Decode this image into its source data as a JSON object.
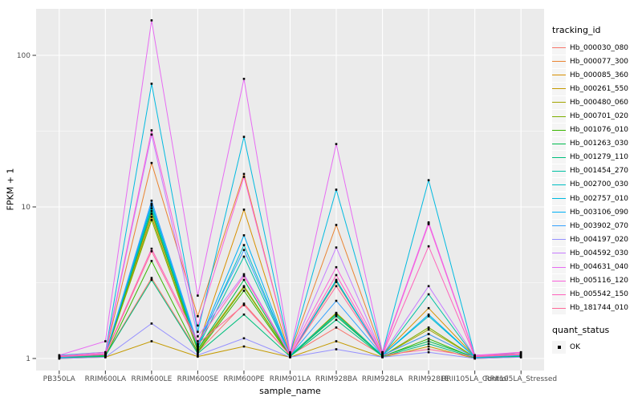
{
  "chart_data": {
    "type": "line",
    "title": "",
    "xlabel": "sample_name",
    "ylabel": "FPKM + 1",
    "y_scale": "log10",
    "ylim": [
      0.83,
      205
    ],
    "y_ticks": [
      1,
      10,
      100
    ],
    "y_minor_ticks": [
      3.1623,
      31.623
    ],
    "grid": "on",
    "legend_position": "right",
    "panel_bg": "#EBEBEB",
    "grid_color": "#FFFFFF",
    "axis_text_color": "#4D4D4D",
    "tick_color": "#333333",
    "point_color": "#000000",
    "categories": [
      "PB350LA",
      "RRIM600LA",
      "RRIM600LE",
      "RRIM600SE",
      "RRIM600PE",
      "RRIM901LA",
      "RRIM928BA",
      "RRIM928LA",
      "RRIM928LE",
      "RRII105LA_Control",
      "RRII105LA_Stressed"
    ],
    "series": [
      {
        "name": "Hb_000030_080",
        "color": "#F8766D",
        "values": [
          1.02,
          1.05,
          3.4,
          1.1,
          2.3,
          1.05,
          1.6,
          1.05,
          1.45,
          1.02,
          1.05
        ]
      },
      {
        "name": "Hb_000077_300",
        "color": "#EA8331",
        "values": [
          1.03,
          1.08,
          19.5,
          1.9,
          16.5,
          1.08,
          7.6,
          1.08,
          7.8,
          1.05,
          1.08
        ]
      },
      {
        "name": "Hb_000085_360",
        "color": "#D89000",
        "values": [
          1.02,
          1.05,
          9.0,
          1.2,
          9.6,
          1.05,
          3.2,
          1.06,
          2.15,
          1.03,
          1.05
        ]
      },
      {
        "name": "Hb_000261_550",
        "color": "#C49A00",
        "values": [
          1.0,
          1.02,
          1.3,
          1.03,
          1.2,
          1.02,
          1.3,
          1.02,
          1.2,
          1.0,
          1.02
        ]
      },
      {
        "name": "Hb_000480_060",
        "color": "#A3A500",
        "values": [
          1.02,
          1.04,
          8.6,
          1.15,
          3.0,
          1.04,
          2.0,
          1.04,
          1.55,
          1.02,
          1.04
        ]
      },
      {
        "name": "Hb_000701_020",
        "color": "#7CAE00",
        "values": [
          1.02,
          1.05,
          8.2,
          1.12,
          2.95,
          1.04,
          1.98,
          1.04,
          1.6,
          1.02,
          1.04
        ]
      },
      {
        "name": "Hb_001076_010",
        "color": "#39B600",
        "values": [
          1.01,
          1.03,
          4.4,
          1.1,
          2.8,
          1.03,
          1.95,
          1.03,
          1.35,
          1.01,
          1.03
        ]
      },
      {
        "name": "Hb_001263_030",
        "color": "#00BB4E",
        "values": [
          1.02,
          1.05,
          9.4,
          1.15,
          3.3,
          1.04,
          1.9,
          1.04,
          1.3,
          1.02,
          1.04
        ]
      },
      {
        "name": "Hb_001279_110",
        "color": "#00BF7D",
        "values": [
          1.01,
          1.04,
          3.3,
          1.08,
          1.95,
          1.03,
          1.8,
          1.03,
          1.25,
          1.01,
          1.03
        ]
      },
      {
        "name": "Hb_001454_270",
        "color": "#00C1A3",
        "values": [
          1.02,
          1.06,
          9.8,
          1.18,
          4.7,
          1.05,
          3.3,
          1.05,
          2.65,
          1.02,
          1.05
        ]
      },
      {
        "name": "Hb_002700_030",
        "color": "#00BFC4",
        "values": [
          1.02,
          1.06,
          10.2,
          1.2,
          5.6,
          1.05,
          1.95,
          1.05,
          1.9,
          1.02,
          1.05
        ]
      },
      {
        "name": "Hb_002757_010",
        "color": "#00BAE0",
        "values": [
          1.05,
          1.1,
          65,
          1.5,
          29,
          1.08,
          13,
          1.1,
          15,
          1.05,
          1.08
        ]
      },
      {
        "name": "Hb_003106_090",
        "color": "#00B0F6",
        "values": [
          1.02,
          1.07,
          10.5,
          1.22,
          6.5,
          1.05,
          3.25,
          1.05,
          1.95,
          1.02,
          1.05
        ]
      },
      {
        "name": "Hb_003902_070",
        "color": "#35A2FF",
        "values": [
          1.02,
          1.06,
          11.0,
          1.25,
          5.2,
          1.05,
          2.4,
          1.05,
          1.45,
          1.02,
          1.05
        ]
      },
      {
        "name": "Hb_004197_020",
        "color": "#9590FF",
        "values": [
          1.0,
          1.02,
          1.7,
          1.05,
          1.36,
          1.02,
          1.15,
          1.02,
          1.1,
          1.0,
          1.02
        ]
      },
      {
        "name": "Hb_004592_030",
        "color": "#C77CFF",
        "values": [
          1.03,
          1.08,
          30,
          1.4,
          3.6,
          1.06,
          5.4,
          1.06,
          3.0,
          1.03,
          1.06
        ]
      },
      {
        "name": "Hb_004631_040",
        "color": "#E76BF3",
        "values": [
          1.05,
          1.3,
          170,
          2.6,
          70,
          1.1,
          26,
          1.1,
          7.9,
          1.05,
          1.1
        ]
      },
      {
        "name": "Hb_005116_120",
        "color": "#FA62DB",
        "values": [
          1.04,
          1.1,
          32,
          1.65,
          15.8,
          1.08,
          4.0,
          1.08,
          7.7,
          1.04,
          1.1
        ]
      },
      {
        "name": "Hb_005542_150",
        "color": "#FF62BC",
        "values": [
          1.03,
          1.07,
          5.3,
          1.3,
          3.5,
          1.05,
          3.55,
          1.06,
          5.5,
          1.03,
          1.08
        ]
      },
      {
        "name": "Hb_181744_010",
        "color": "#FF6A98",
        "values": [
          1.03,
          1.06,
          5.1,
          1.25,
          2.25,
          1.05,
          3.0,
          1.05,
          1.15,
          1.03,
          1.06
        ]
      }
    ],
    "legend": {
      "tracking_title": "tracking_id",
      "quant_title": "quant_status",
      "quant_items": [
        {
          "label": "OK",
          "marker": "square",
          "color": "#000000"
        }
      ]
    }
  }
}
